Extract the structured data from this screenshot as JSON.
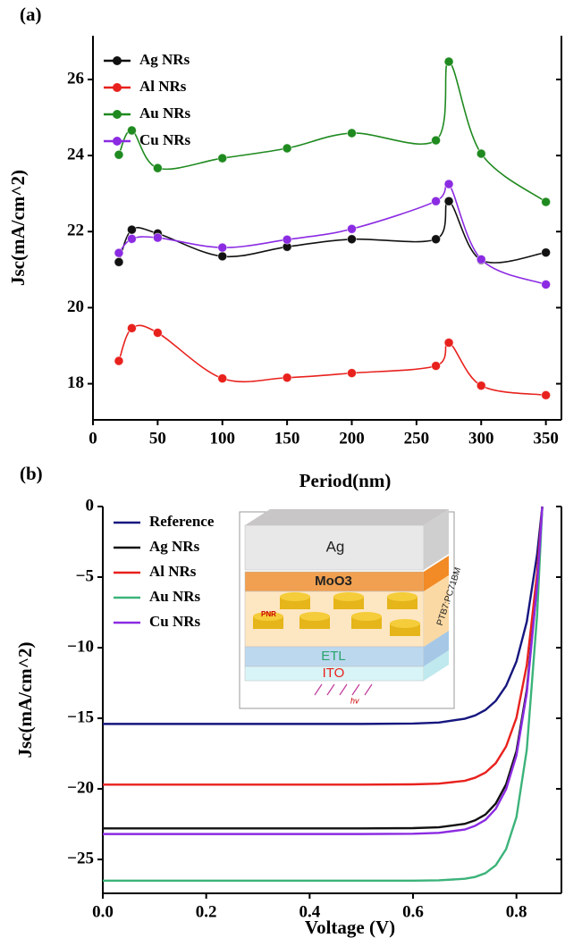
{
  "chart_data": [
    {
      "type": "scatter",
      "panel_label": "(a)",
      "x_label": "Period(nm)",
      "y_label": "Jsc(mA/cm^2)",
      "x": [
        20,
        30,
        50,
        100,
        150,
        200,
        265,
        275,
        300,
        350
      ],
      "series": [
        {
          "name": "Ag NRs",
          "color": "#111111",
          "values": [
            21.2,
            22.05,
            21.95,
            21.35,
            21.6,
            21.8,
            21.8,
            22.8,
            21.25,
            21.45
          ]
        },
        {
          "name": "Al NRs",
          "color": "#e8211d",
          "values": [
            18.6,
            19.46,
            19.34,
            18.14,
            18.16,
            18.28,
            18.47,
            19.08,
            17.95,
            17.7
          ]
        },
        {
          "name": "Au NRs",
          "color": "#1f8a1f",
          "values": [
            24.02,
            24.66,
            23.67,
            23.93,
            24.19,
            24.59,
            24.4,
            26.47,
            24.05,
            22.78
          ]
        },
        {
          "name": "Cu NRs",
          "color": "#8b2be2",
          "values": [
            21.44,
            21.81,
            21.84,
            21.58,
            21.79,
            22.07,
            22.8,
            23.25,
            21.27,
            20.61
          ]
        }
      ],
      "xlim": [
        0,
        362
      ],
      "ylim": [
        17.05,
        27.15
      ],
      "xticks": [
        0,
        50,
        100,
        150,
        200,
        250,
        300,
        350
      ],
      "yticks": [
        18,
        20,
        22,
        24,
        26
      ],
      "legend": "upper left"
    },
    {
      "type": "line",
      "panel_label": "(b)",
      "x_label": "Voltage (V)",
      "y_label": "Jsc(mA/cm^2)",
      "x": [
        0,
        0.1,
        0.2,
        0.3,
        0.4,
        0.5,
        0.6,
        0.65,
        0.7,
        0.72,
        0.74,
        0.76,
        0.78,
        0.8,
        0.82,
        0.84,
        0.85
      ],
      "series": [
        {
          "name": "Reference",
          "color": "#16167f",
          "values": [
            -15.4,
            -15.4,
            -15.4,
            -15.4,
            -15.4,
            -15.4,
            -15.37,
            -15.3,
            -15.03,
            -14.8,
            -14.41,
            -13.77,
            -12.7,
            -10.98,
            -8.16,
            -3.39,
            0
          ]
        },
        {
          "name": "Ag NRs",
          "color": "#111111",
          "values": [
            -22.8,
            -22.8,
            -22.8,
            -22.8,
            -22.8,
            -22.8,
            -22.78,
            -22.72,
            -22.48,
            -22.23,
            -21.82,
            -21.04,
            -19.68,
            -17.33,
            -13.0,
            -5.47,
            0
          ]
        },
        {
          "name": "Al NRs",
          "color": "#e8211d",
          "values": [
            -19.7,
            -19.7,
            -19.7,
            -19.7,
            -19.7,
            -19.7,
            -19.68,
            -19.63,
            -19.43,
            -19.21,
            -18.85,
            -18.18,
            -17.0,
            -14.97,
            -11.23,
            -4.73,
            0
          ]
        },
        {
          "name": "Au NRs",
          "color": "#3cb37a",
          "values": [
            -26.5,
            -26.5,
            -26.5,
            -26.5,
            -26.5,
            -26.5,
            -26.5,
            -26.48,
            -26.37,
            -26.24,
            -25.97,
            -25.41,
            -24.27,
            -22.0,
            -17.23,
            -7.69,
            0
          ]
        },
        {
          "name": "Cu NRs",
          "color": "#8b2be2",
          "values": [
            -23.2,
            -23.2,
            -23.2,
            -23.2,
            -23.2,
            -23.2,
            -23.18,
            -23.12,
            -22.88,
            -22.62,
            -22.2,
            -21.41,
            -20.02,
            -17.63,
            -13.22,
            -5.57,
            0
          ]
        }
      ],
      "xlim": [
        0,
        0.887
      ],
      "ylim": [
        -27.4,
        0
      ],
      "xticks": [
        {
          "value": 0,
          "label": "0.0"
        },
        0.2,
        0.4,
        0.6,
        0.8
      ],
      "yticks": [
        0,
        {
          "value": -5,
          "label": "−5"
        },
        {
          "value": -10,
          "label": "−10"
        },
        {
          "value": -15,
          "label": "−15"
        },
        {
          "value": -20,
          "label": "−20"
        },
        {
          "value": -25,
          "label": "−25"
        }
      ],
      "legend": "upper left",
      "inset": {
        "layers": [
          "Ag",
          "MoO3",
          "PTB7:PC71BM",
          "ETL",
          "ITO"
        ],
        "particle": "PNR",
        "light": "hv"
      }
    }
  ]
}
